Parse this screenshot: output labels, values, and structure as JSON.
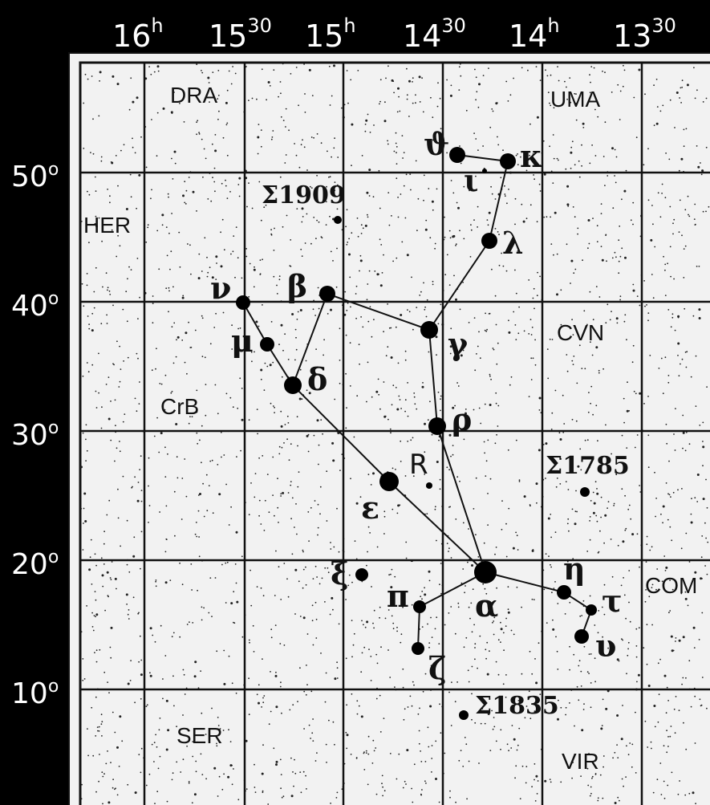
{
  "ra_labels": [
    {
      "h": "16",
      "unit": "h"
    },
    {
      "h": "15",
      "unit": "30"
    },
    {
      "h": "15",
      "unit": "h"
    },
    {
      "h": "14",
      "unit": "30"
    },
    {
      "h": "14",
      "unit": "h"
    },
    {
      "h": "13",
      "unit": "30"
    }
  ],
  "dec_labels": [
    "50",
    "40",
    "30",
    "20",
    "10"
  ],
  "degree_symbol": "o",
  "constellations": [
    "DRA",
    "UMA",
    "HER",
    "CVN",
    "CrB",
    "COM",
    "SER",
    "VIR"
  ],
  "stars": {
    "theta": "ϑ",
    "kappa": "κ",
    "iota": "ι",
    "lambda": "λ",
    "beta": "β",
    "nu": "ν",
    "gamma": "γ",
    "mu": "μ",
    "delta": "δ",
    "rho": "ρ",
    "epsilon": "ε",
    "xi": "ξ",
    "eta": "η",
    "pi": "π",
    "alpha": "α",
    "tau": "τ",
    "upsilon": "υ",
    "zeta": "ζ"
  },
  "variable_star": "R",
  "double_stars": [
    "Σ1909",
    "Σ1785",
    "Σ1835"
  ],
  "colors": {
    "background": "#000000",
    "chart": "#f2f2f2",
    "ink": "#111111",
    "axis_text": "#ffffff"
  }
}
